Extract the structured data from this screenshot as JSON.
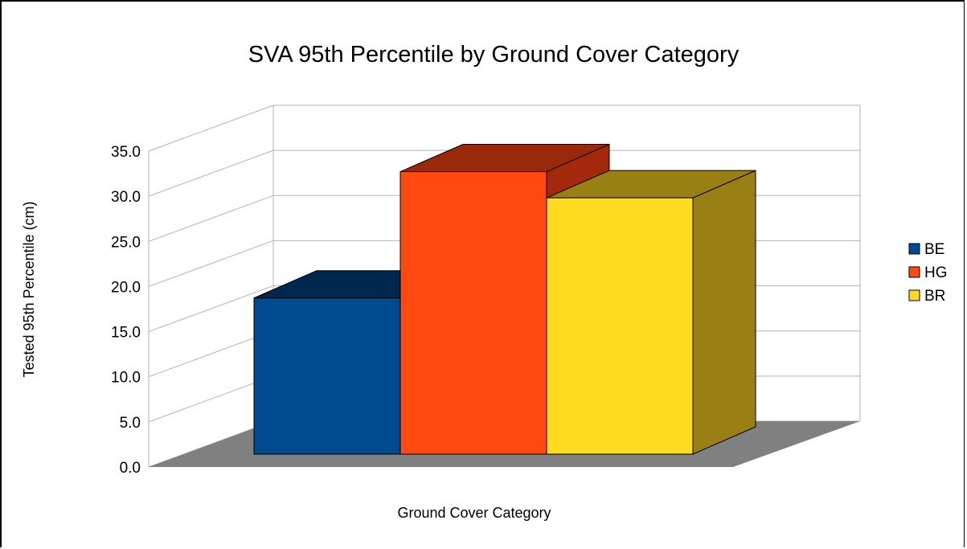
{
  "chart_data": {
    "type": "bar",
    "title": "SVA 95th Percentile by Ground Cover Category",
    "xlabel": "Ground Cover Category",
    "ylabel": "Tested 95th Percentile (cm)",
    "ylim": [
      0,
      35
    ],
    "yticks": [
      "0.0",
      "5.0",
      "10.0",
      "15.0",
      "20.0",
      "25.0",
      "30.0",
      "35.0"
    ],
    "grid": true,
    "legend_position": "right",
    "series": [
      {
        "name": "BE",
        "values": [
          17.3
        ],
        "color": "#004a8f",
        "top_color": "#00284f",
        "side_color": "#002a55"
      },
      {
        "name": "HG",
        "values": [
          31.3
        ],
        "color": "#ff4911",
        "top_color": "#98290a",
        "side_color": "#a3290a"
      },
      {
        "name": "BR",
        "values": [
          28.4
        ],
        "color": "#ffdb20",
        "top_color": "#998013",
        "side_color": "#9a7f15"
      }
    ],
    "floor_color": "#808080"
  }
}
